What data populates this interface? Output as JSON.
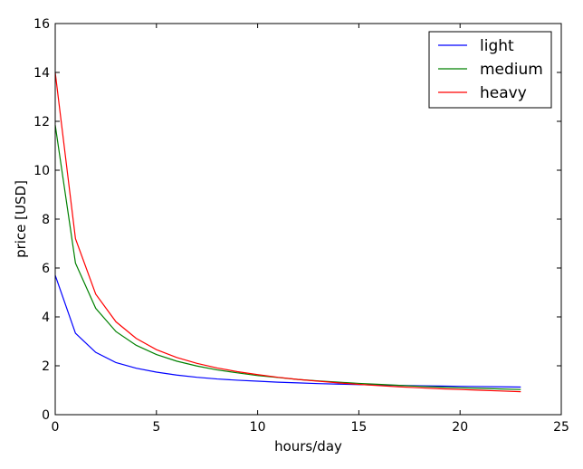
{
  "chart_data": {
    "type": "line",
    "title": "",
    "xlabel": "hours/day",
    "ylabel": "price [USD]",
    "xlim": [
      0,
      25
    ],
    "ylim": [
      0,
      16
    ],
    "xticks": [
      "0",
      "5",
      "10",
      "15",
      "20",
      "25"
    ],
    "yticks": [
      "0",
      "2",
      "4",
      "6",
      "8",
      "10",
      "12",
      "14",
      "16"
    ],
    "grid": false,
    "legend_position": "top-right",
    "x": [
      0,
      1,
      2,
      3,
      4,
      5,
      6,
      7,
      8,
      9,
      10,
      11,
      12,
      13,
      14,
      15,
      16,
      17,
      18,
      19,
      20,
      21,
      22,
      23
    ],
    "series": [
      {
        "name": "light",
        "color": "#0000ff",
        "values": [
          5.7,
          3.33,
          2.55,
          2.13,
          1.9,
          1.74,
          1.62,
          1.53,
          1.46,
          1.41,
          1.37,
          1.33,
          1.3,
          1.27,
          1.25,
          1.23,
          1.21,
          1.2,
          1.18,
          1.17,
          1.16,
          1.15,
          1.14,
          1.13
        ]
      },
      {
        "name": "medium",
        "color": "#008000",
        "values": [
          11.85,
          6.2,
          4.35,
          3.4,
          2.84,
          2.46,
          2.19,
          1.99,
          1.83,
          1.71,
          1.6,
          1.52,
          1.44,
          1.38,
          1.33,
          1.28,
          1.24,
          1.2,
          1.16,
          1.13,
          1.1,
          1.08,
          1.05,
          1.03
        ]
      },
      {
        "name": "heavy",
        "color": "#ff0000",
        "values": [
          14.0,
          7.2,
          4.93,
          3.8,
          3.12,
          2.66,
          2.34,
          2.1,
          1.91,
          1.76,
          1.64,
          1.53,
          1.44,
          1.37,
          1.3,
          1.24,
          1.19,
          1.14,
          1.1,
          1.06,
          1.03,
          1.0,
          0.97,
          0.94
        ]
      }
    ]
  }
}
